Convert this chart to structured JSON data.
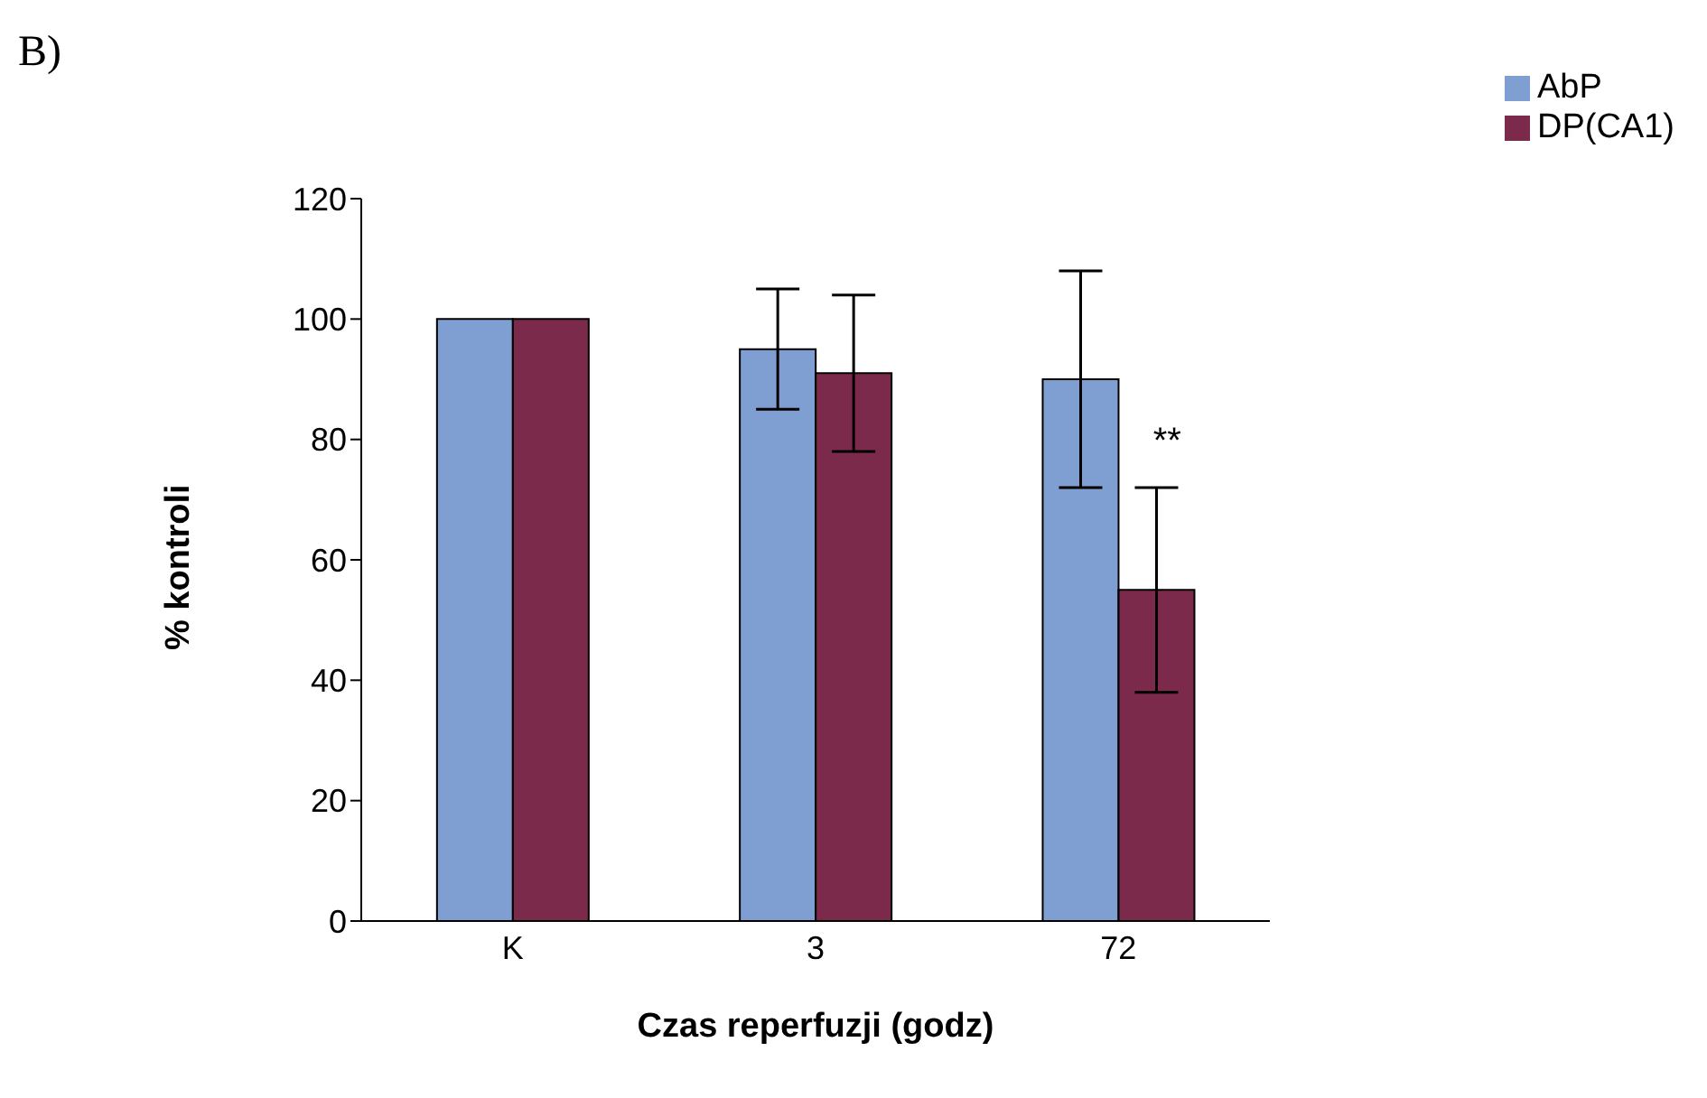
{
  "chart_data": {
    "type": "bar",
    "title": "B)",
    "xlabel": "Czas reperfuzji (godz)",
    "ylabel": "% kontroli",
    "categories": [
      "K",
      "3",
      "72"
    ],
    "series": [
      {
        "name": "AbP",
        "color": "#7f9fd3",
        "values": [
          100,
          95,
          90
        ],
        "errors": [
          null,
          [
            85,
            105
          ],
          [
            72,
            108
          ]
        ]
      },
      {
        "name": "DP(CA1)",
        "color": "#7b2a4c",
        "values": [
          100,
          91,
          55
        ],
        "errors": [
          null,
          [
            78,
            104
          ],
          [
            38,
            72
          ]
        ]
      }
    ],
    "ylim": [
      0,
      120
    ],
    "yticks": [
      0,
      20,
      40,
      60,
      80,
      100,
      120
    ],
    "grid": false,
    "legend": "top right",
    "annotations": [
      {
        "text": "**",
        "x": "72",
        "y": 80
      }
    ]
  }
}
